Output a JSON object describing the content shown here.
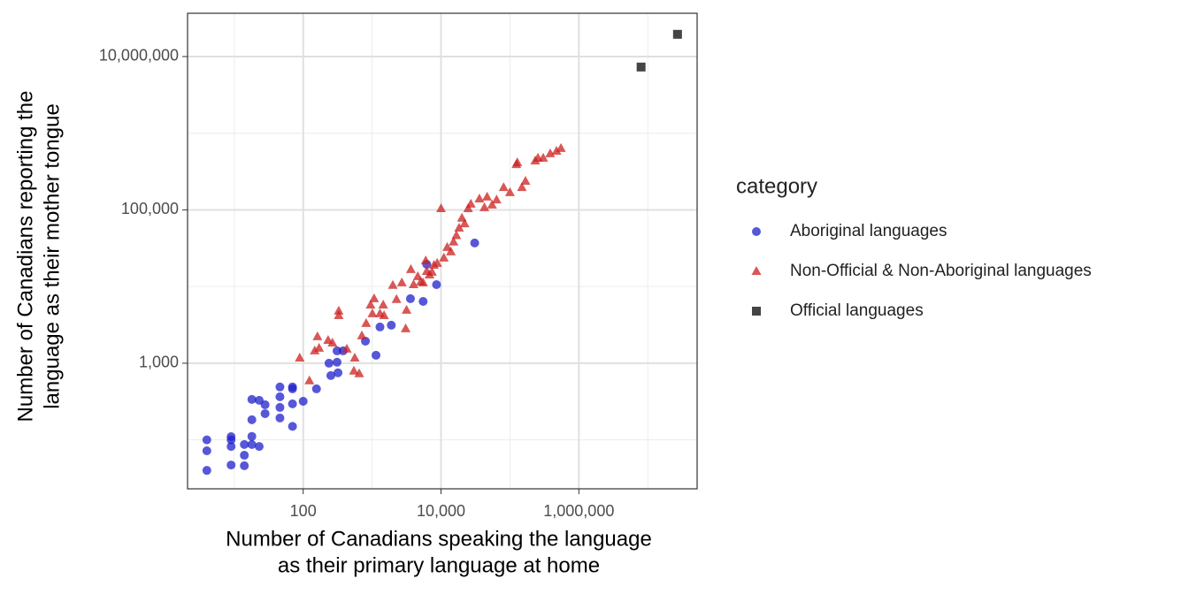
{
  "chart_data": {
    "type": "scatter",
    "x_label": [
      "Number of Canadians speaking the language",
      "as their primary language at home"
    ],
    "y_label": [
      "Number of Canadians reporting the",
      "language as their mother tongue"
    ],
    "log_x": true,
    "log_y": true,
    "grid": true,
    "xlim": [
      2.1,
      52000000
    ],
    "ylim": [
      23,
      36700000
    ],
    "xticks": [
      {
        "value": 100,
        "label": "100"
      },
      {
        "value": 10000,
        "label": "10,000"
      },
      {
        "value": 1000000,
        "label": "1,000,000"
      }
    ],
    "yticks": [
      {
        "value": 1000,
        "label": "1,000"
      },
      {
        "value": 100000,
        "label": "100,000"
      },
      {
        "value": 10000000,
        "label": "10,000,000"
      }
    ],
    "x_minor_breaks": [
      10,
      1000,
      100000,
      10000000
    ],
    "y_minor_breaks": [
      100,
      10000,
      1000000
    ],
    "legend_title": "category",
    "legend_position": "right",
    "series": [
      {
        "name": "Aboriginal languages",
        "color": "#1f1fcc",
        "shape": "circle",
        "x": [
          4,
          4,
          4,
          9,
          9,
          9,
          9,
          14,
          14,
          14,
          18,
          18,
          18,
          18,
          23,
          23,
          28,
          28,
          46,
          46,
          46,
          46,
          70,
          70,
          70,
          70,
          100,
          156,
          237,
          252,
          310,
          310,
          320,
          380,
          800,
          1140,
          1300,
          1900,
          3600,
          5500,
          8600,
          6200,
          30800
        ],
        "values": [
          100,
          72,
          40,
          100,
          82,
          47,
          110,
          87,
          63,
          46,
          337,
          183,
          111,
          87,
          82,
          328,
          287,
          220,
          490,
          365,
          265,
          193,
          490,
          295,
          150,
          463,
          319,
          463,
          1000,
          690,
          1450,
          1030,
          750,
          1450,
          1940,
          1270,
          2970,
          3130,
          6940,
          6400,
          10600,
          19500,
          37000
        ]
      },
      {
        "name": "Non-Official & Non-Aboriginal languages",
        "color": "#cc1f1f",
        "shape": "triangle",
        "x": [
          89,
          123,
          161,
          170,
          147,
          230,
          266,
          328,
          328,
          430,
          544,
          650,
          560,
          710,
          820,
          950,
          1010,
          1070,
          1300,
          1450,
          1490,
          2000,
          2260,
          2700,
          3070,
          3160,
          3650,
          4000,
          4600,
          5100,
          5500,
          6000,
          6200,
          6800,
          7400,
          7900,
          8800,
          10000,
          11000,
          12300,
          13900,
          15200,
          16700,
          18300,
          20100,
          22000,
          24700,
          27100,
          36000,
          42600,
          46600,
          55000,
          64000,
          81000,
          100000,
          124000,
          128000,
          149000,
          168000,
          233000,
          255000,
          304000,
          384000,
          474000,
          550000
        ],
        "values": [
          1170,
          590,
          2220,
          1570,
          1450,
          1990,
          1840,
          4790,
          4190,
          1530,
          790,
          730,
          1170,
          2280,
          3300,
          5760,
          4430,
          6940,
          4430,
          5760,
          4190,
          10400,
          6780,
          11200,
          2820,
          4920,
          16700,
          10600,
          13500,
          11500,
          11200,
          21700,
          15800,
          14200,
          15400,
          19000,
          20100,
          104000,
          23600,
          32400,
          28400,
          38100,
          46300,
          58000,
          78000,
          66000,
          104000,
          119000,
          139000,
          107000,
          147000,
          116000,
          135000,
          196000,
          168000,
          391000,
          413000,
          196000,
          237000,
          436000,
          473000,
          473000,
          540000,
          583000,
          635000
        ]
      },
      {
        "name": "Official languages",
        "color": "#444444",
        "shape": "square",
        "x": [
          8000000,
          27000000
        ],
        "values": [
          7300000,
          19500000
        ]
      }
    ]
  }
}
